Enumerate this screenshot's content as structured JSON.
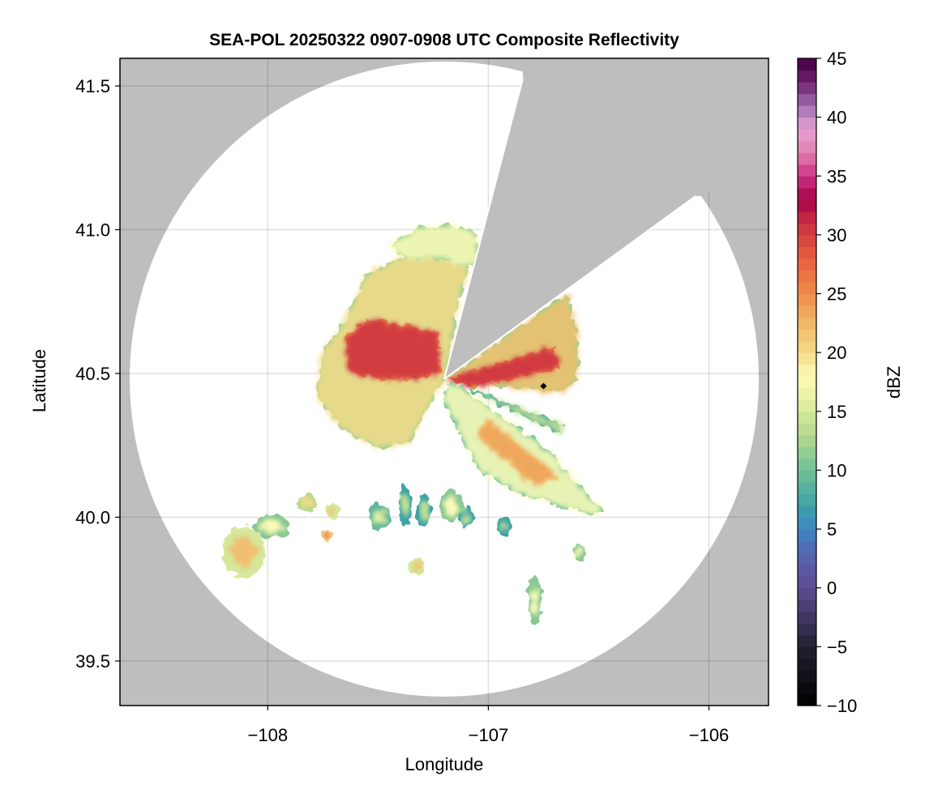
{
  "chart_data": {
    "type": "heatmap",
    "title": "SEA-POL 20250322 0907-0908 UTC Composite Reflectivity",
    "xlabel": "Longitude",
    "ylabel": "Latitude",
    "xlim": [
      -108.67,
      -105.73
    ],
    "ylim": [
      39.345,
      41.596
    ],
    "xticks": [
      -108,
      -107,
      -106
    ],
    "xtick_labels": [
      "−108",
      "−107",
      "−106"
    ],
    "yticks": [
      39.5,
      40.0,
      40.5,
      41.0,
      41.5
    ],
    "ytick_labels": [
      "39.5",
      "40.0",
      "40.5",
      "41.0",
      "41.5"
    ],
    "grid": true,
    "background_color": "#bebebe",
    "colorbar": {
      "label": "dBZ",
      "range": [
        -10,
        45
      ],
      "step": 1,
      "ticks": [
        -10,
        -5,
        0,
        5,
        10,
        15,
        20,
        25,
        30,
        35,
        40,
        45
      ],
      "tick_labels": [
        "−10",
        "−5",
        "0",
        "5",
        "10",
        "15",
        "20",
        "25",
        "30",
        "35",
        "40",
        "45"
      ],
      "anchors": [
        [
          -10,
          "#000000"
        ],
        [
          -5,
          "#231f30"
        ],
        [
          0,
          "#5e4c92"
        ],
        [
          3,
          "#5666b2"
        ],
        [
          5,
          "#3f86c0"
        ],
        [
          7,
          "#3ea2a6"
        ],
        [
          10,
          "#70c096"
        ],
        [
          13,
          "#b4d98e"
        ],
        [
          16,
          "#e6f0a2"
        ],
        [
          18,
          "#fdfbb8"
        ],
        [
          20,
          "#f3dc88"
        ],
        [
          23,
          "#eeb062"
        ],
        [
          25,
          "#ef8c4a"
        ],
        [
          28,
          "#e6603e"
        ],
        [
          31,
          "#cc3040"
        ],
        [
          33,
          "#a6004a"
        ],
        [
          35,
          "#cc3282"
        ],
        [
          37,
          "#e27eb2"
        ],
        [
          39,
          "#e6a2d2"
        ],
        [
          41,
          "#a06eb0"
        ],
        [
          43,
          "#6e2070"
        ],
        [
          45,
          "#40003f"
        ]
      ]
    },
    "radar_site": {
      "lon": -107.2,
      "lat": 40.48
    },
    "marker": {
      "lon": -106.75,
      "lat": 40.456,
      "shape": "diamond",
      "color": "#000000"
    },
    "echo_regions": [
      {
        "dbz_edge": 12,
        "dbz_fill": 20,
        "polygon": [
          [
            -107.2,
            40.48
          ],
          [
            -107.14,
            40.73
          ],
          [
            -107.09,
            40.87
          ],
          [
            -107.23,
            40.95
          ],
          [
            -107.38,
            40.91
          ],
          [
            -107.56,
            40.84
          ],
          [
            -107.65,
            40.69
          ],
          [
            -107.76,
            40.56
          ],
          [
            -107.78,
            40.42
          ],
          [
            -107.67,
            40.31
          ],
          [
            -107.49,
            40.24
          ],
          [
            -107.36,
            40.26
          ],
          [
            -107.27,
            40.39
          ]
        ]
      },
      {
        "dbz_edge": 25,
        "dbz_fill": 31,
        "polygon": [
          [
            -107.21,
            40.5
          ],
          [
            -107.23,
            40.64
          ],
          [
            -107.38,
            40.67
          ],
          [
            -107.56,
            40.69
          ],
          [
            -107.65,
            40.62
          ],
          [
            -107.63,
            40.5
          ],
          [
            -107.49,
            40.48
          ],
          [
            -107.34,
            40.48
          ]
        ]
      },
      {
        "dbz_edge": 12,
        "dbz_fill": 22,
        "polygon": [
          [
            -107.2,
            40.48
          ],
          [
            -106.79,
            40.7
          ],
          [
            -106.64,
            40.78
          ],
          [
            -106.59,
            40.61
          ],
          [
            -106.6,
            40.47
          ],
          [
            -106.68,
            40.43
          ],
          [
            -107.01,
            40.46
          ]
        ]
      },
      {
        "dbz_edge": 26,
        "dbz_fill": 31,
        "polygon": [
          [
            -107.19,
            40.48
          ],
          [
            -106.71,
            40.59
          ],
          [
            -106.67,
            40.52
          ],
          [
            -107.07,
            40.45
          ]
        ]
      },
      {
        "dbz_edge": 10,
        "dbz_fill": 18,
        "polygon": [
          [
            -107.16,
            40.47
          ],
          [
            -107.01,
            40.39
          ],
          [
            -106.71,
            40.22
          ],
          [
            -106.48,
            40.02
          ],
          [
            -106.54,
            40.01
          ],
          [
            -106.86,
            40.08
          ],
          [
            -107.05,
            40.17
          ],
          [
            -107.14,
            40.31
          ],
          [
            -107.21,
            40.42
          ]
        ]
      },
      {
        "dbz_edge": 20,
        "dbz_fill": 24,
        "polygon": [
          [
            -107.01,
            40.34
          ],
          [
            -106.68,
            40.14
          ],
          [
            -106.79,
            40.11
          ],
          [
            -107.05,
            40.28
          ]
        ]
      },
      {
        "dbz_edge": 8,
        "dbz_fill": 14,
        "polygon": [
          [
            -107.08,
            40.45
          ],
          [
            -106.66,
            40.32
          ],
          [
            -106.67,
            40.29
          ],
          [
            -107.08,
            40.44
          ]
        ]
      },
      {
        "dbz_edge": 12,
        "dbz_fill": 18,
        "polygon": [
          [
            -107.45,
            40.95
          ],
          [
            -107.3,
            41.01
          ],
          [
            -107.16,
            41.02
          ],
          [
            -107.05,
            40.98
          ],
          [
            -107.06,
            40.87
          ],
          [
            -107.23,
            40.9
          ],
          [
            -107.38,
            40.9
          ]
        ]
      }
    ],
    "echo_cells": [
      {
        "lon": -108.11,
        "lat": 39.88,
        "rlon": 0.1,
        "rlat": 0.09,
        "dbz": 22
      },
      {
        "lon": -107.98,
        "lat": 39.97,
        "rlon": 0.08,
        "rlat": 0.04,
        "dbz": 18
      },
      {
        "lon": -107.82,
        "lat": 40.05,
        "rlon": 0.05,
        "rlat": 0.03,
        "dbz": 20
      },
      {
        "lon": -107.71,
        "lat": 40.02,
        "rlon": 0.03,
        "rlat": 0.03,
        "dbz": 22
      },
      {
        "lon": -107.73,
        "lat": 39.94,
        "rlon": 0.02,
        "rlat": 0.02,
        "dbz": 28
      },
      {
        "lon": -107.49,
        "lat": 40.0,
        "rlon": 0.05,
        "rlat": 0.05,
        "dbz": 16
      },
      {
        "lon": -107.38,
        "lat": 40.04,
        "rlon": 0.03,
        "rlat": 0.07,
        "dbz": 14
      },
      {
        "lon": -107.29,
        "lat": 40.02,
        "rlon": 0.03,
        "rlat": 0.06,
        "dbz": 14
      },
      {
        "lon": -107.17,
        "lat": 40.04,
        "rlon": 0.05,
        "rlat": 0.06,
        "dbz": 18
      },
      {
        "lon": -107.1,
        "lat": 40.0,
        "rlon": 0.03,
        "rlat": 0.04,
        "dbz": 14
      },
      {
        "lon": -106.93,
        "lat": 39.97,
        "rlon": 0.03,
        "rlat": 0.03,
        "dbz": 14
      },
      {
        "lon": -106.79,
        "lat": 39.71,
        "rlon": 0.03,
        "rlat": 0.09,
        "dbz": 18
      },
      {
        "lon": -106.59,
        "lat": 39.88,
        "rlon": 0.03,
        "rlat": 0.03,
        "dbz": 18
      },
      {
        "lon": -107.32,
        "lat": 39.83,
        "rlon": 0.03,
        "rlat": 0.03,
        "dbz": 22
      }
    ]
  }
}
